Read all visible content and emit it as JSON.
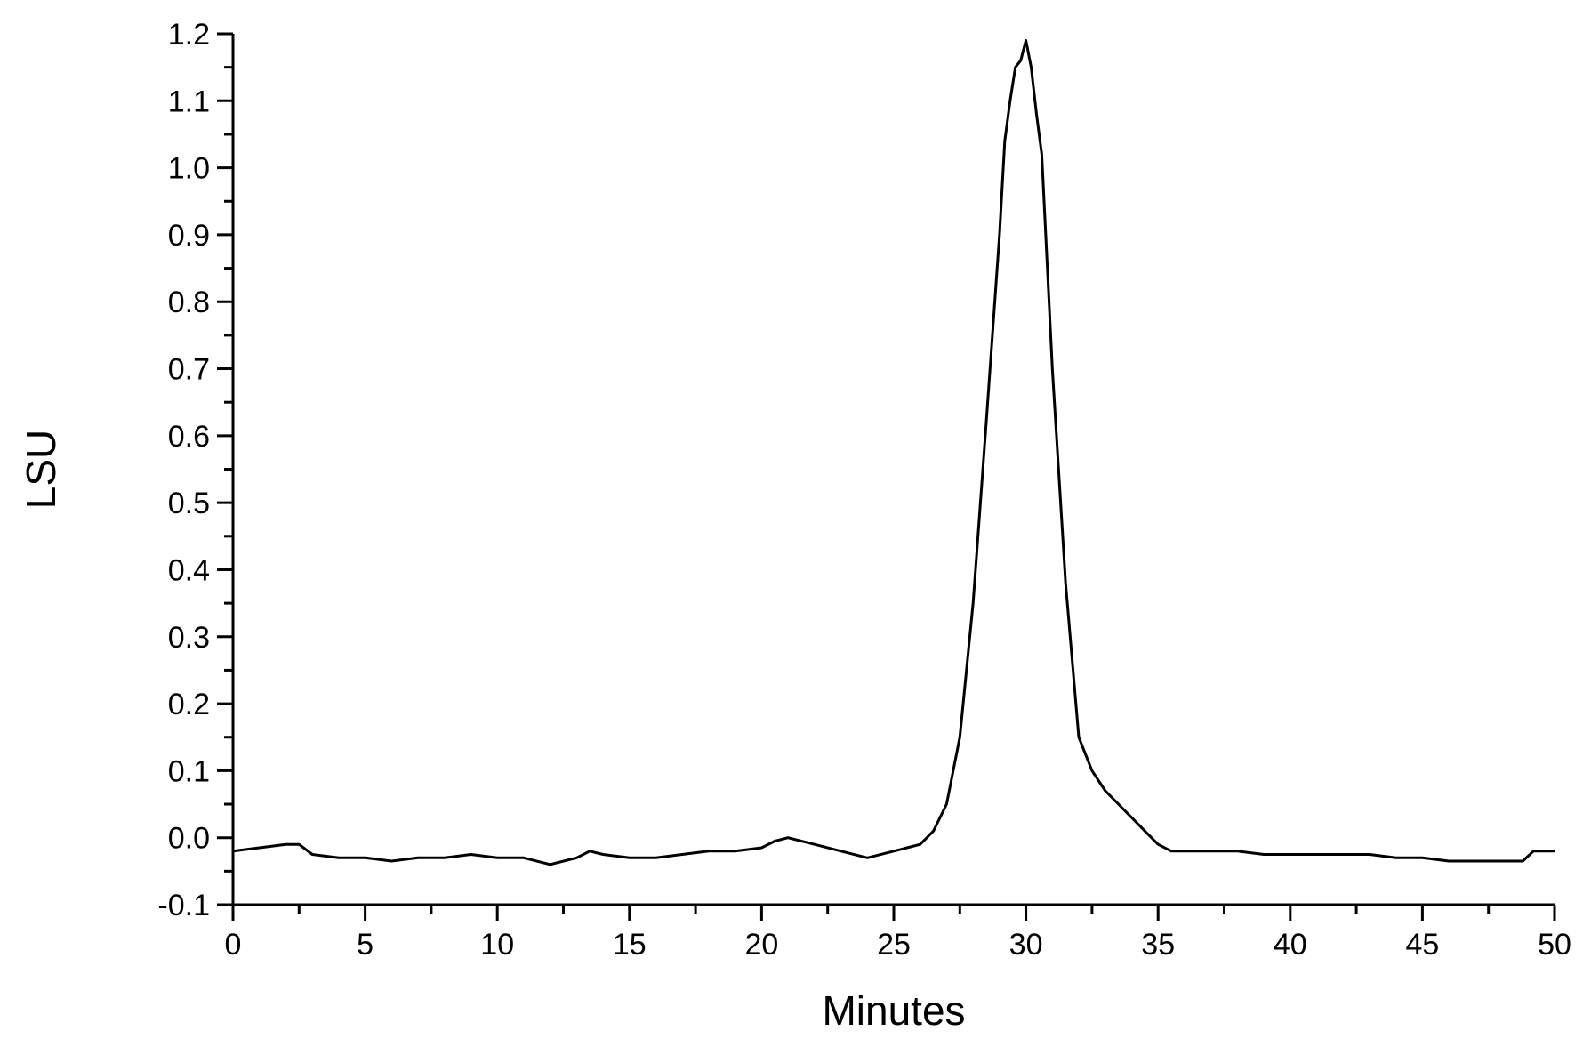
{
  "chart_data": {
    "type": "line",
    "title": "",
    "xlabel": "Minutes",
    "ylabel": "LSU",
    "xlim": [
      0,
      50
    ],
    "ylim": [
      -0.1,
      1.2
    ],
    "x_ticks": [
      0,
      5,
      10,
      15,
      20,
      25,
      30,
      35,
      40,
      45,
      50
    ],
    "x_tick_labels": [
      "0",
      "5",
      "10",
      "15",
      "20",
      "25",
      "30",
      "35",
      "40",
      "45",
      "50"
    ],
    "y_ticks": [
      -0.1,
      0.0,
      0.1,
      0.2,
      0.3,
      0.4,
      0.5,
      0.6,
      0.7,
      0.8,
      0.9,
      1.0,
      1.1,
      1.2
    ],
    "y_tick_labels": [
      "-0.1",
      "0.0",
      "0.1",
      "0.2",
      "0.3",
      "0.4",
      "0.5",
      "0.6",
      "0.7",
      "0.8",
      "0.9",
      "1.0",
      "1.1",
      "1.2"
    ],
    "grid": false,
    "line_color": "#000000",
    "series": [
      {
        "x": [
          0,
          1,
          2,
          2.5,
          3,
          4,
          5,
          6,
          7,
          8,
          9,
          10,
          11,
          12,
          13,
          13.5,
          14,
          15,
          16,
          17,
          18,
          19,
          20,
          20.5,
          21,
          22,
          23,
          24,
          25,
          25.5,
          26,
          26.5,
          27,
          27.5,
          28,
          28.5,
          29,
          29.2,
          29.4,
          29.6,
          29.8,
          30,
          30.2,
          30.4,
          30.6,
          31,
          31.5,
          32,
          32.5,
          33,
          33.5,
          34,
          34.5,
          35,
          35.5,
          36,
          37,
          38,
          39,
          40,
          41,
          42,
          43,
          44,
          45,
          46,
          47,
          48,
          48.8,
          49.2,
          49.6,
          50
        ],
        "y": [
          -0.02,
          -0.015,
          -0.01,
          -0.01,
          -0.025,
          -0.03,
          -0.03,
          -0.035,
          -0.03,
          -0.03,
          -0.025,
          -0.03,
          -0.03,
          -0.04,
          -0.03,
          -0.02,
          -0.025,
          -0.03,
          -0.03,
          -0.025,
          -0.02,
          -0.02,
          -0.015,
          -0.005,
          0.0,
          -0.01,
          -0.02,
          -0.03,
          -0.02,
          -0.015,
          -0.01,
          0.01,
          0.05,
          0.15,
          0.35,
          0.62,
          0.9,
          1.04,
          1.1,
          1.15,
          1.16,
          1.19,
          1.15,
          1.08,
          1.02,
          0.7,
          0.38,
          0.15,
          0.1,
          0.07,
          0.05,
          0.03,
          0.01,
          -0.01,
          -0.02,
          -0.02,
          -0.02,
          -0.02,
          -0.025,
          -0.025,
          -0.025,
          -0.025,
          -0.025,
          -0.03,
          -0.03,
          -0.035,
          -0.035,
          -0.035,
          -0.035,
          -0.02,
          -0.02,
          -0.02
        ]
      }
    ]
  }
}
